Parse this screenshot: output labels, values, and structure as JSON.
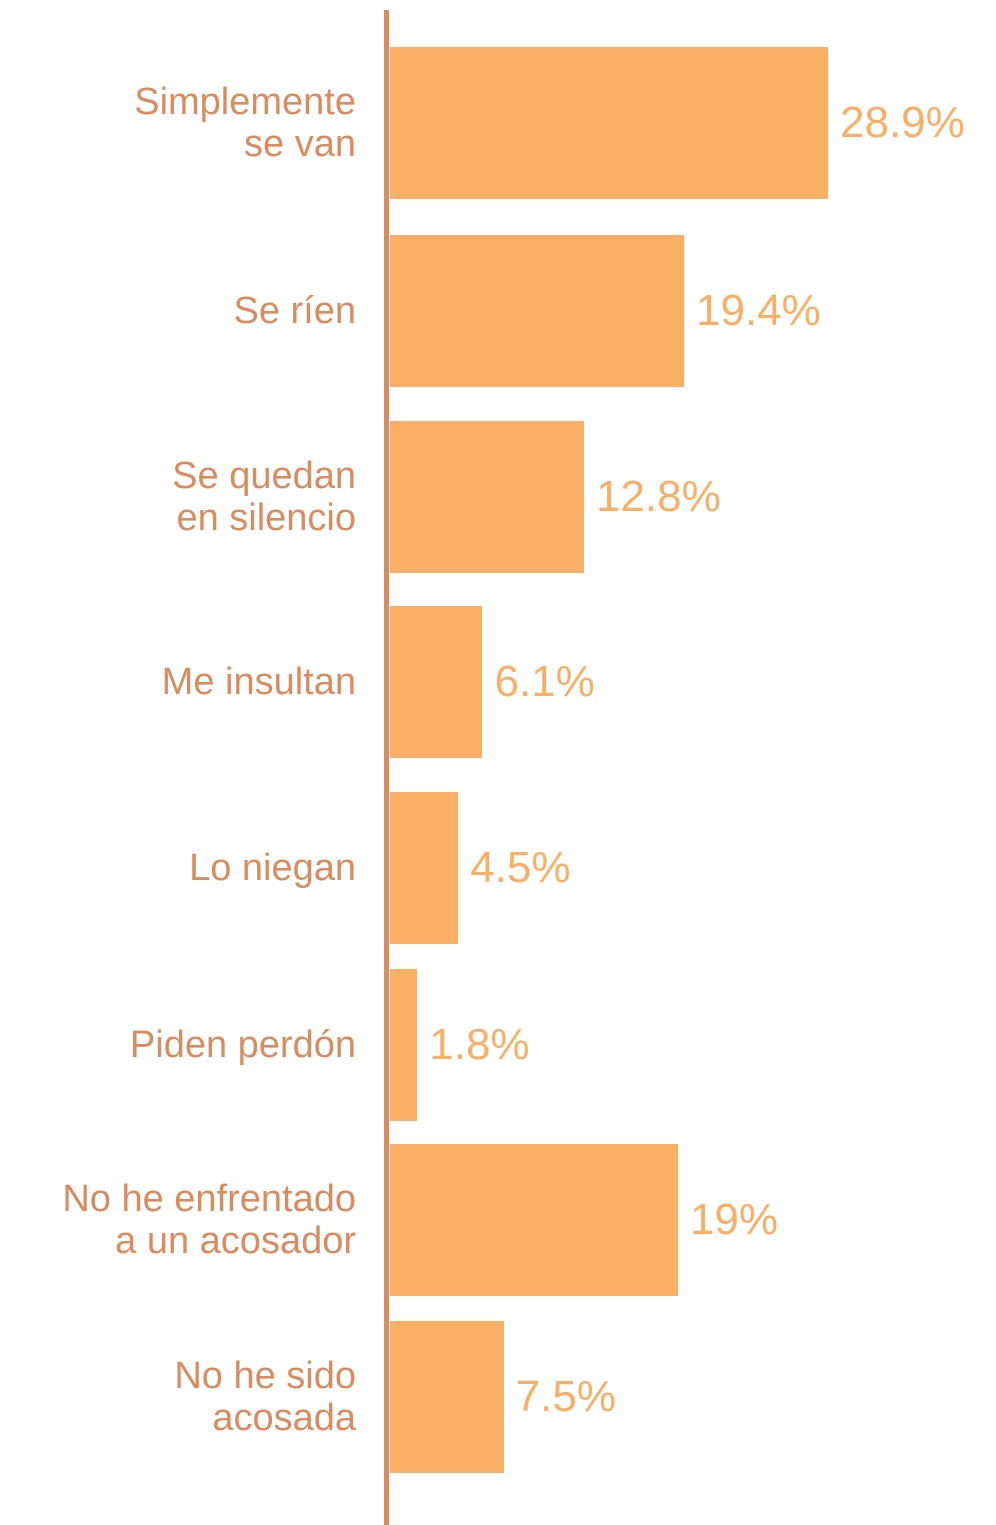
{
  "chart_data": {
    "type": "barh",
    "categories": [
      "Simplemente\nse van",
      "Se ríen",
      "Se quedan\nen silencio",
      "Me insultan",
      "Lo niegan",
      "Piden perdón",
      "No he enfrentado\na un acosador",
      "No he sido\nacosada"
    ],
    "values": [
      28.9,
      19.4,
      12.8,
      6.1,
      4.5,
      1.8,
      19,
      7.5
    ],
    "value_labels": [
      "28.9%",
      "19.4%",
      "12.8%",
      "6.1%",
      "4.5%",
      "1.8%",
      "19%",
      "7.5%"
    ],
    "color": "#f9b066"
  }
}
